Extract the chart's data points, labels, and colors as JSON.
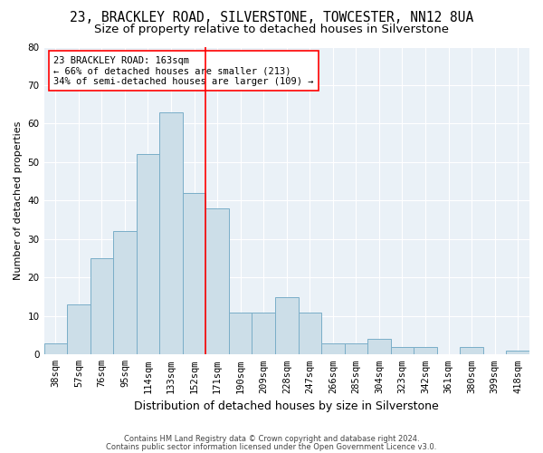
{
  "title": "23, BRACKLEY ROAD, SILVERSTONE, TOWCESTER, NN12 8UA",
  "subtitle": "Size of property relative to detached houses in Silverstone",
  "xlabel": "Distribution of detached houses by size in Silverstone",
  "ylabel": "Number of detached properties",
  "categories": [
    "38sqm",
    "57sqm",
    "76sqm",
    "95sqm",
    "114sqm",
    "133sqm",
    "152sqm",
    "171sqm",
    "190sqm",
    "209sqm",
    "228sqm",
    "247sqm",
    "266sqm",
    "285sqm",
    "304sqm",
    "323sqm",
    "342sqm",
    "361sqm",
    "380sqm",
    "399sqm",
    "418sqm"
  ],
  "values": [
    3,
    13,
    25,
    32,
    52,
    63,
    42,
    38,
    11,
    11,
    15,
    11,
    3,
    3,
    4,
    2,
    2,
    0,
    2,
    0,
    1
  ],
  "bar_color": "#ccdee8",
  "bar_edge_color": "#7aaec8",
  "vline_x": 6.5,
  "ylim": [
    0,
    80
  ],
  "yticks": [
    0,
    10,
    20,
    30,
    40,
    50,
    60,
    70,
    80
  ],
  "annotation_line1": "23 BRACKLEY ROAD: 163sqm",
  "annotation_line2": "← 66% of detached houses are smaller (213)",
  "annotation_line3": "34% of semi-detached houses are larger (109) →",
  "footer1": "Contains HM Land Registry data © Crown copyright and database right 2024.",
  "footer2": "Contains public sector information licensed under the Open Government Licence v3.0.",
  "background_color": "#ffffff",
  "plot_bg_color": "#eaf1f7",
  "grid_color": "#ffffff",
  "title_fontsize": 10.5,
  "subtitle_fontsize": 9.5,
  "ylabel_fontsize": 8,
  "xlabel_fontsize": 9,
  "tick_fontsize": 7.5,
  "annot_fontsize": 7.5,
  "footer_fontsize": 6,
  "bin_width": 19
}
